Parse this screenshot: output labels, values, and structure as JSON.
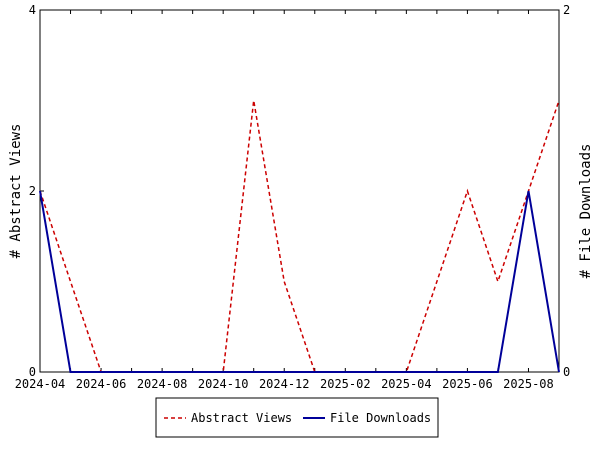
{
  "chart_data": {
    "type": "line",
    "x": [
      "2024-04",
      "2024-05",
      "2024-06",
      "2024-07",
      "2024-08",
      "2024-09",
      "2024-10",
      "2024-11",
      "2024-12",
      "2025-01",
      "2025-02",
      "2025-03",
      "2025-04",
      "2025-05",
      "2025-06",
      "2025-07",
      "2025-08",
      "2025-09"
    ],
    "x_tick_labels": [
      "2024-04",
      "2024-06",
      "2024-08",
      "2024-10",
      "2024-12",
      "2025-02",
      "2025-04",
      "2025-06",
      "2025-08"
    ],
    "series": [
      {
        "name": "Abstract Views",
        "axis": "left",
        "color": "#cc0000",
        "dash": "dashed",
        "values": [
          2,
          1,
          0,
          0,
          0,
          0,
          0,
          3,
          1,
          0,
          0,
          0,
          0,
          1,
          2,
          1,
          2,
          3
        ]
      },
      {
        "name": "File Downloads",
        "axis": "right",
        "color": "#000099",
        "dash": "solid",
        "values": [
          1,
          0,
          0,
          0,
          0,
          0,
          0,
          0,
          0,
          0,
          0,
          0,
          0,
          0,
          0,
          0,
          1,
          0
        ]
      }
    ],
    "ylabel_left": "# Abstract Views",
    "ylabel_right": "# File Downloads",
    "ylim_left": [
      0,
      4
    ],
    "ylim_right": [
      0,
      2
    ],
    "yticks_left": [
      0,
      2,
      4
    ],
    "yticks_right": [
      0,
      2
    ],
    "grid": false,
    "legend_position": "bottom-center"
  }
}
